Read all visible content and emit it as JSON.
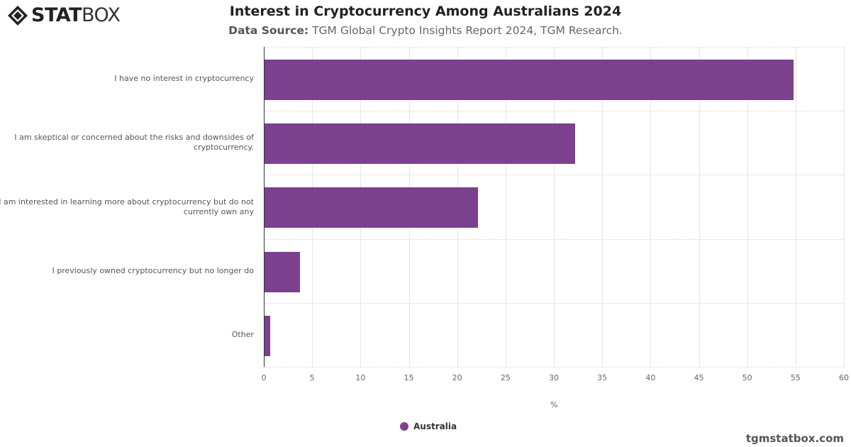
{
  "brand": {
    "logo_bold": "STAT",
    "logo_light": "BOX",
    "watermark": "tgmstatbox.com"
  },
  "header": {
    "title": "Interest in Cryptocurrency Among Australians 2024",
    "source_label": "Data Source:",
    "source_text": "TGM Global Crypto Insights Report 2024, TGM Research."
  },
  "colors": {
    "bar": "#7b408e",
    "gridline": "#e6e6e6",
    "axis": "#333333"
  },
  "chart_data": {
    "type": "bar",
    "orientation": "horizontal",
    "title": "Interest in Cryptocurrency Among Australians 2024",
    "subtitle": "Data Source: TGM Global Crypto Insights Report 2024, TGM Research.",
    "categories": [
      "I have no interest in cryptocurrency",
      "I am skeptical or concerned about the risks and downsides of cryptocurrency.",
      "I am interested in learning more about cryptocurrency but do not currently own any",
      "I previously owned cryptocurrency but no longer do",
      "Other"
    ],
    "series": [
      {
        "name": "Australia",
        "color": "#7b408e",
        "values": [
          54.7,
          32.1,
          22.1,
          3.7,
          0.6
        ]
      }
    ],
    "xlabel": "%",
    "ylabel": "",
    "xlim": [
      0,
      60
    ],
    "xticks": [
      "0",
      "5",
      "10",
      "15",
      "20",
      "25",
      "30",
      "35",
      "40",
      "45",
      "50",
      "55",
      "60"
    ],
    "grid": true,
    "legend_position": "bottom"
  },
  "category_labels": [
    {
      "line1": "I have no interest in cryptocurrency",
      "line2": ""
    },
    {
      "line1": "I am skeptical or concerned about the risks and downsides of",
      "line2": "cryptocurrency."
    },
    {
      "line1": "I am interested in learning more about cryptocurrency but do not",
      "line2": "currently own any"
    },
    {
      "line1": "I previously owned cryptocurrency but no longer do",
      "line2": ""
    },
    {
      "line1": "Other",
      "line2": ""
    }
  ],
  "legend": {
    "label": "Australia"
  }
}
